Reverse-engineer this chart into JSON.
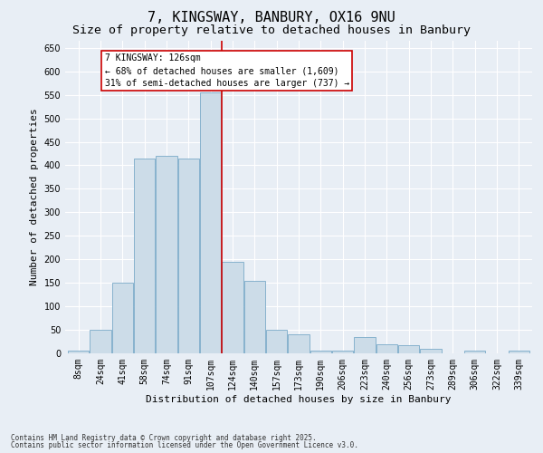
{
  "title": "7, KINGSWAY, BANBURY, OX16 9NU",
  "subtitle": "Size of property relative to detached houses in Banbury",
  "xlabel": "Distribution of detached houses by size in Banbury",
  "ylabel": "Number of detached properties",
  "footnote1": "Contains HM Land Registry data © Crown copyright and database right 2025.",
  "footnote2": "Contains public sector information licensed under the Open Government Licence v3.0.",
  "bar_labels": [
    "8sqm",
    "24sqm",
    "41sqm",
    "58sqm",
    "74sqm",
    "91sqm",
    "107sqm",
    "124sqm",
    "140sqm",
    "157sqm",
    "173sqm",
    "190sqm",
    "206sqm",
    "223sqm",
    "240sqm",
    "256sqm",
    "273sqm",
    "289sqm",
    "306sqm",
    "322sqm",
    "339sqm"
  ],
  "bar_values": [
    5,
    50,
    150,
    415,
    420,
    415,
    555,
    195,
    155,
    50,
    40,
    5,
    5,
    35,
    20,
    18,
    10,
    0,
    5,
    0,
    5
  ],
  "bar_color": "#ccdce8",
  "bar_edge_color": "#7aaac8",
  "red_line_index": 7,
  "ylim": [
    0,
    665
  ],
  "yticks": [
    0,
    50,
    100,
    150,
    200,
    250,
    300,
    350,
    400,
    450,
    500,
    550,
    600,
    650
  ],
  "annotation_title": "7 KINGSWAY: 126sqm",
  "annotation_line1": "← 68% of detached houses are smaller (1,609)",
  "annotation_line2": "31% of semi-detached houses are larger (737) →",
  "annotation_box_color": "#cc0000",
  "background_color": "#e8eef5",
  "plot_bg_color": "#e8eef5",
  "grid_color": "#ffffff",
  "title_fontsize": 11,
  "subtitle_fontsize": 9.5,
  "axis_label_fontsize": 8,
  "tick_fontsize": 7,
  "annot_fontsize": 7,
  "footnote_fontsize": 5.5
}
